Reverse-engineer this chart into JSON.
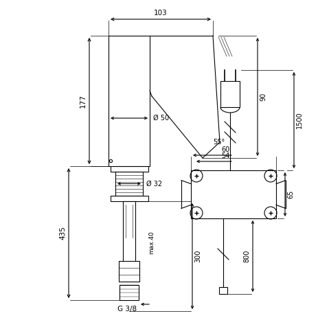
{
  "bg_color": "#ffffff",
  "line_color": "#000000",
  "fig_size": [
    4.63,
    4.63
  ],
  "dpi": 100,
  "font_size": 7.0,
  "lw": 0.8,
  "labels": {
    "dim_103": "103",
    "dim_177": "177",
    "dim_435": "435",
    "dim_50": "Ø 50",
    "dim_32": "Ø 32",
    "dim_55": "55°",
    "dim_90": "90",
    "dim_300": "300",
    "dim_max40": "max.40",
    "dim_60": "60",
    "dim_54": "54",
    "dim_800": "800",
    "dim_1500": "1500",
    "dim_65": "65",
    "g38": "G 3/8"
  }
}
